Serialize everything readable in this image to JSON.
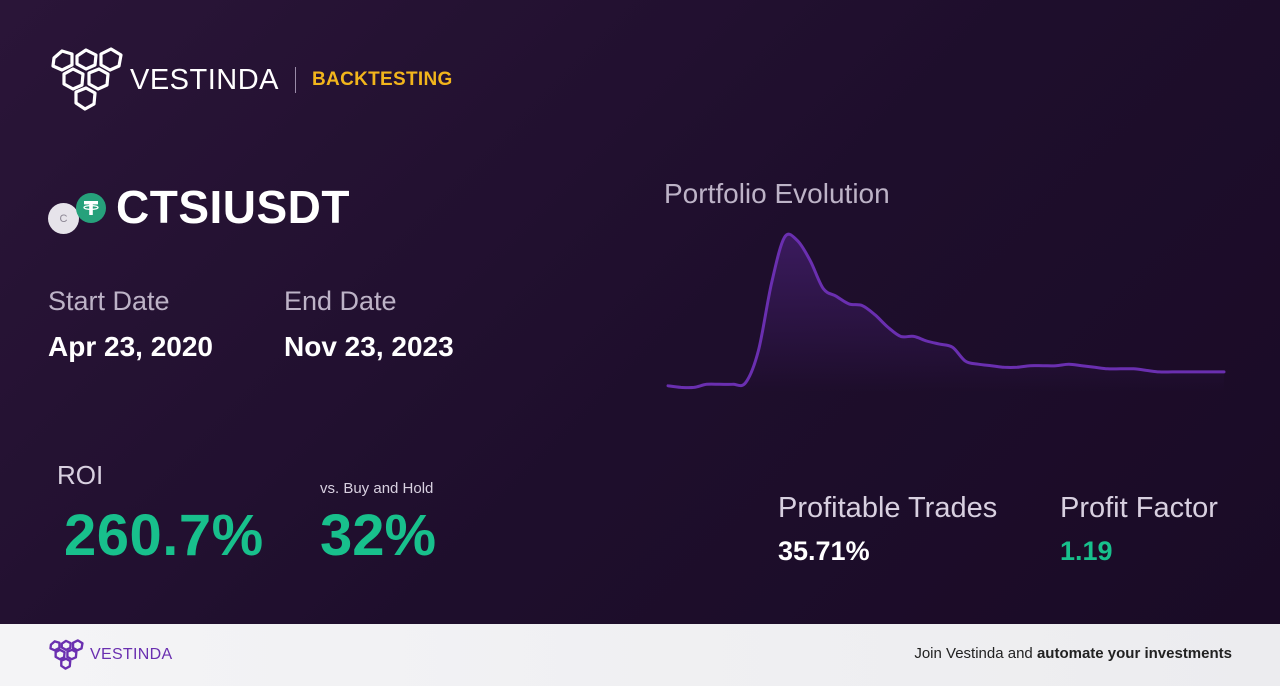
{
  "header": {
    "brand": "VESTINDA",
    "section": "BACKTESTING",
    "accent_color": "#f2b51c"
  },
  "pair": {
    "name": "CTSIUSDT",
    "base_icon": "cartesi-coin-icon",
    "base_icon_letter": "C",
    "quote_icon": "tether-coin-icon"
  },
  "dates": {
    "start_label": "Start Date",
    "start_value": "Apr 23, 2020",
    "end_label": "End Date",
    "end_value": "Nov 23, 2023"
  },
  "metrics": {
    "roi_label": "ROI",
    "roi_value": "260.7%",
    "bh_label": "vs. Buy and Hold",
    "bh_value": "32%",
    "profitable_trades_label": "Profitable Trades",
    "profitable_trades_value": "35.71%",
    "profit_factor_label": "Profit Factor",
    "profit_factor_value": "1.19",
    "positive_color": "#18c08c"
  },
  "chart": {
    "title": "Portfolio Evolution",
    "line_color": "#6a2fb0"
  },
  "chart_data": {
    "type": "area",
    "title": "Portfolio Evolution",
    "xlabel": "",
    "ylabel": "",
    "grid": false,
    "legend": "none",
    "x": [
      0,
      1,
      2,
      3,
      4,
      5,
      6,
      7,
      8,
      9,
      10,
      11,
      12,
      13,
      14,
      15,
      16,
      17,
      18,
      19,
      20,
      21,
      22,
      23,
      24,
      25,
      26,
      27,
      28,
      29,
      30,
      31,
      32,
      33,
      34,
      35,
      36,
      37,
      38,
      39,
      40,
      41,
      42,
      43
    ],
    "values": [
      4,
      3,
      3,
      5,
      5,
      5,
      6,
      27,
      70,
      100,
      98,
      85,
      67,
      62,
      57,
      56,
      50,
      42,
      36,
      36,
      33,
      31,
      29,
      20,
      18,
      17,
      16,
      16,
      17,
      17,
      17,
      18,
      17,
      16,
      15,
      15,
      15,
      14,
      13,
      13,
      13,
      13,
      13,
      13
    ],
    "ylim": [
      0,
      110
    ]
  },
  "footer": {
    "brand": "VESTINDA",
    "cta_prefix": "Join Vestinda and ",
    "cta_bold": "automate your investments"
  }
}
